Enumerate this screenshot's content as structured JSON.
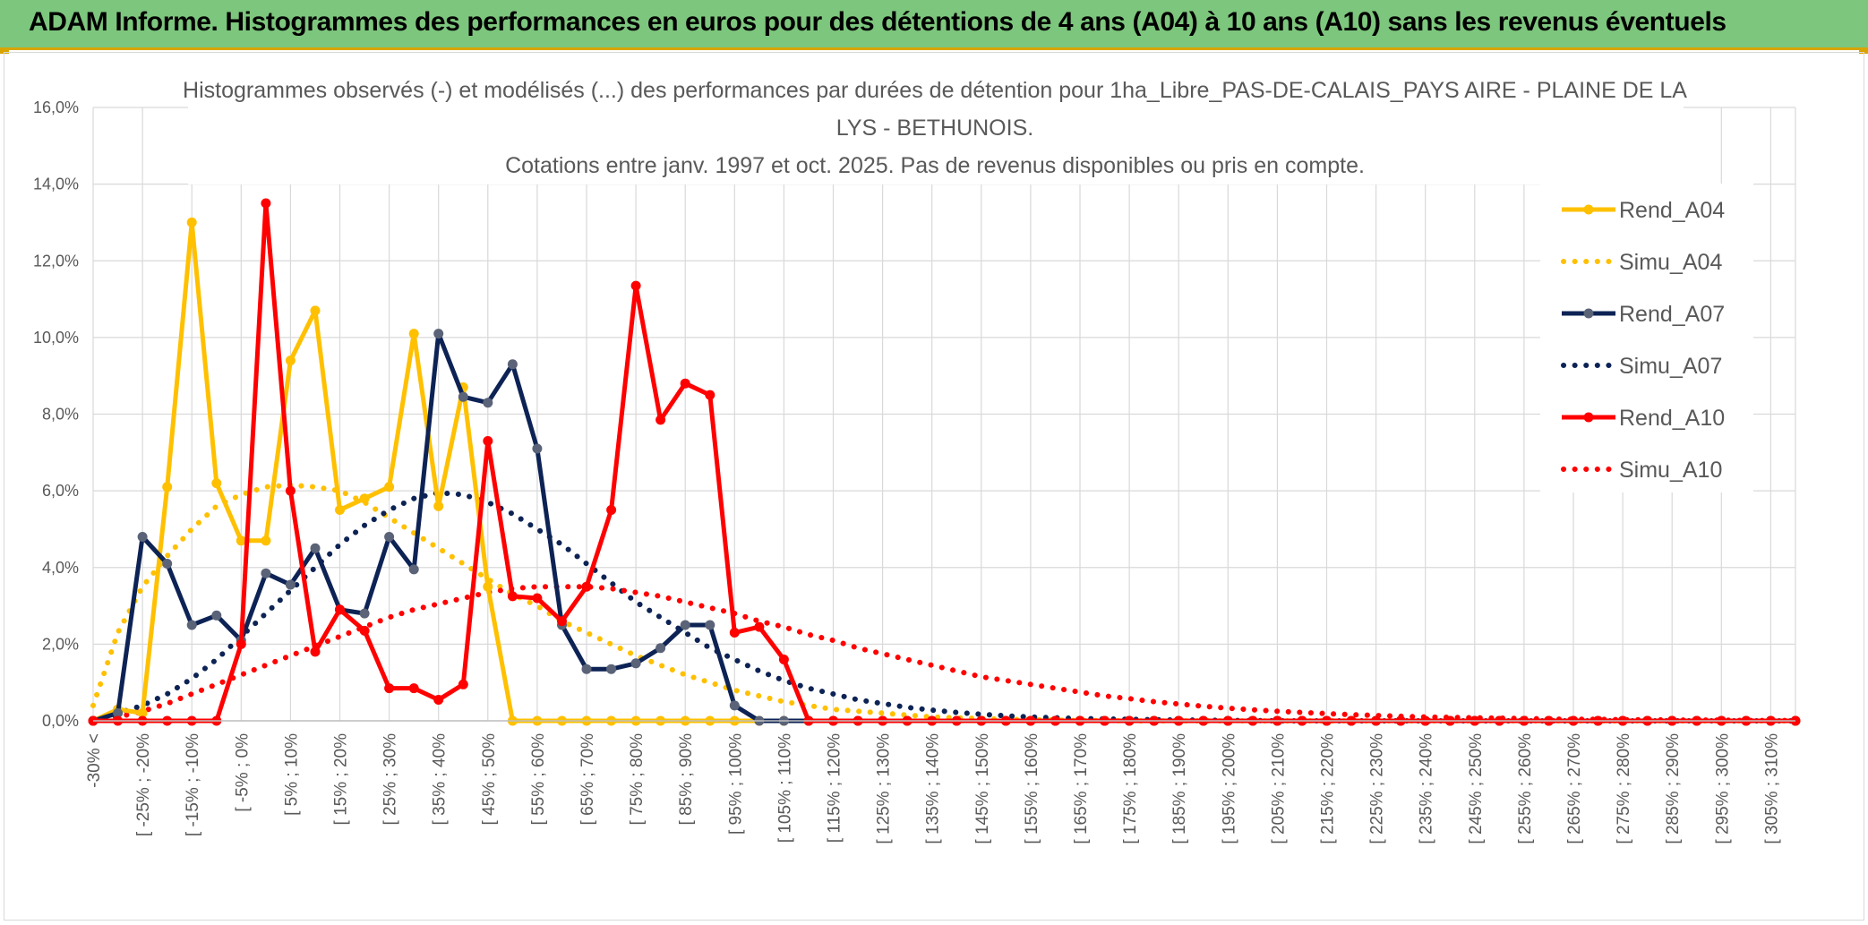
{
  "header": {
    "title": "ADAM Informe. Histogrammes des performances en euros pour des détentions de 4 ans (A04) à 10 ans (A10) sans les revenus éventuels"
  },
  "colors": {
    "banner": "#7dc67d",
    "a04": "#ffc000",
    "a07": "#0d2355",
    "a07_marker": "#5a6377",
    "a10": "#ff0000"
  },
  "chart_data": {
    "type": "line",
    "title_lines": [
      "Histogrammes observés (-) et modélisés (...) des performances par durées de détention pour 1ha_Libre_PAS-DE-CALAIS_PAYS AIRE - PLAINE DE LA",
      "LYS - BETHUNOIS.",
      "Cotations entre janv. 1997 et oct. 2025. Pas de revenus disponibles ou pris en compte."
    ],
    "ylim": [
      0,
      16
    ],
    "y_ticks": [
      "0,0%",
      "2,0%",
      "4,0%",
      "6,0%",
      "8,0%",
      "10,0%",
      "12,0%",
      "14,0%",
      "16,0%"
    ],
    "x_tick_labels": [
      "-30% <",
      "[ -25% ; -20%",
      "[ -15% ; -10%",
      "[ -5% ; 0%",
      "[ 5% ; 10%",
      "[ 15% ; 20%",
      "[ 25% ; 30%",
      "[ 35% ; 40%",
      "[ 45% ; 50%",
      "[ 55% ; 60%",
      "[ 65% ; 70%",
      "[ 75% ; 80%",
      "[ 85% ; 90%",
      "[ 95% ; 100%",
      "[ 105% ; 110%",
      "[ 115% ; 120%",
      "[ 125% ; 130%",
      "[ 135% ; 140%",
      "[ 145% ; 150%",
      "[ 155% ; 160%",
      "[ 165% ; 170%",
      "[ 175% ; 180%",
      "[ 185% ; 190%",
      "[ 195% ; 200%",
      "[ 205% ; 210%",
      "[ 215% ; 220%",
      "[ 225% ; 230%",
      "[ 235% ; 240%",
      "[ 245% ; 250%",
      "[ 255% ; 260%",
      "[ 265% ; 270%",
      "[ 275% ; 280%",
      "[ 285% ; 290%",
      "[ 295% ; 300%",
      "[ 305% ; 310%"
    ],
    "legend_position": "right",
    "grid": true,
    "series": [
      {
        "name": "Rend_A04",
        "style": "solid",
        "color": "#ffc000",
        "values": [
          0,
          0.3,
          0.2,
          6.1,
          13.0,
          6.2,
          4.7,
          4.7,
          9.4,
          10.7,
          5.5,
          5.8,
          6.1,
          10.1,
          5.6,
          8.7,
          3.5,
          0,
          0,
          0,
          0,
          0,
          0,
          0,
          0,
          0,
          0,
          0,
          0,
          0,
          0,
          0,
          0,
          0,
          0,
          0,
          0,
          0,
          0,
          0,
          0,
          0,
          0,
          0,
          0,
          0,
          0,
          0,
          0,
          0,
          0,
          0,
          0,
          0,
          0,
          0,
          0,
          0,
          0,
          0,
          0,
          0,
          0,
          0,
          0,
          0,
          0,
          0,
          0,
          0
        ]
      },
      {
        "name": "Simu_A04",
        "style": "dotted",
        "color": "#ffc000",
        "values": [
          0.4,
          2.3,
          3.5,
          4.3,
          5.0,
          5.6,
          5.9,
          6.1,
          6.15,
          6.1,
          6.0,
          5.7,
          5.3,
          4.9,
          4.5,
          4.1,
          3.7,
          3.3,
          3.0,
          2.6,
          2.3,
          2.0,
          1.7,
          1.45,
          1.2,
          1.0,
          0.8,
          0.65,
          0.5,
          0.4,
          0.3,
          0.25,
          0.2,
          0.15,
          0.1,
          0.08,
          0.06,
          0.04,
          0.03,
          0.02,
          0.01,
          0.01,
          0,
          0,
          0,
          0,
          0,
          0,
          0,
          0,
          0,
          0,
          0,
          0,
          0,
          0,
          0,
          0,
          0,
          0,
          0,
          0,
          0,
          0,
          0,
          0,
          0,
          0,
          0,
          0
        ]
      },
      {
        "name": "Rend_A07",
        "style": "solid",
        "color": "#0d2355",
        "values": [
          0,
          0.2,
          4.8,
          4.1,
          2.5,
          2.75,
          2.1,
          3.85,
          3.55,
          4.5,
          2.9,
          2.8,
          4.8,
          3.95,
          10.1,
          8.45,
          8.3,
          9.3,
          7.1,
          2.5,
          1.35,
          1.35,
          1.5,
          1.9,
          2.5,
          2.5,
          0.4,
          0,
          0,
          0,
          0,
          0,
          0,
          0,
          0,
          0,
          0,
          0,
          0,
          0,
          0,
          0,
          0,
          0,
          0,
          0,
          0,
          0,
          0,
          0,
          0,
          0,
          0,
          0,
          0,
          0,
          0,
          0,
          0,
          0,
          0,
          0,
          0,
          0,
          0,
          0,
          0,
          0,
          0,
          0
        ]
      },
      {
        "name": "Simu_A07",
        "style": "dotted",
        "color": "#0d2355",
        "values": [
          0.05,
          0.2,
          0.4,
          0.7,
          1.1,
          1.6,
          2.2,
          2.8,
          3.4,
          4.0,
          4.6,
          5.1,
          5.5,
          5.8,
          5.95,
          5.9,
          5.7,
          5.4,
          5.0,
          4.6,
          4.1,
          3.6,
          3.1,
          2.7,
          2.3,
          1.9,
          1.6,
          1.3,
          1.05,
          0.85,
          0.7,
          0.55,
          0.45,
          0.35,
          0.28,
          0.22,
          0.17,
          0.13,
          0.1,
          0.08,
          0.06,
          0.05,
          0.04,
          0.03,
          0.02,
          0.02,
          0.01,
          0.01,
          0,
          0,
          0,
          0,
          0,
          0,
          0,
          0,
          0,
          0,
          0,
          0,
          0,
          0,
          0,
          0,
          0,
          0,
          0,
          0,
          0,
          0
        ]
      },
      {
        "name": "Rend_A10",
        "style": "solid",
        "color": "#ff0000",
        "values": [
          0,
          0,
          0,
          0,
          0,
          0,
          2.0,
          13.5,
          6.0,
          1.8,
          2.9,
          2.35,
          0.85,
          0.85,
          0.55,
          0.95,
          7.3,
          3.25,
          3.2,
          2.6,
          3.5,
          5.5,
          11.35,
          7.85,
          8.8,
          8.5,
          2.3,
          2.45,
          1.6,
          0,
          0,
          0,
          0,
          0,
          0,
          0,
          0,
          0,
          0,
          0,
          0,
          0,
          0,
          0,
          0,
          0,
          0,
          0,
          0,
          0,
          0,
          0,
          0,
          0,
          0,
          0,
          0,
          0,
          0,
          0,
          0,
          0,
          0,
          0,
          0,
          0,
          0,
          0,
          0,
          0
        ]
      },
      {
        "name": "Simu_A10",
        "style": "dotted",
        "color": "#ff0000",
        "values": [
          0.02,
          0.1,
          0.25,
          0.45,
          0.7,
          0.95,
          1.2,
          1.45,
          1.7,
          1.95,
          2.2,
          2.45,
          2.7,
          2.9,
          3.05,
          3.2,
          3.35,
          3.45,
          3.5,
          3.5,
          3.5,
          3.45,
          3.35,
          3.25,
          3.1,
          2.95,
          2.8,
          2.6,
          2.45,
          2.25,
          2.1,
          1.9,
          1.75,
          1.6,
          1.45,
          1.3,
          1.15,
          1.05,
          0.95,
          0.85,
          0.75,
          0.65,
          0.58,
          0.5,
          0.44,
          0.38,
          0.33,
          0.29,
          0.25,
          0.22,
          0.19,
          0.16,
          0.14,
          0.12,
          0.1,
          0.09,
          0.08,
          0.07,
          0.06,
          0.05,
          0.04,
          0.04,
          0.03,
          0.03,
          0.02,
          0.02,
          0.02,
          0.01,
          0.01,
          0.01
        ]
      }
    ]
  }
}
